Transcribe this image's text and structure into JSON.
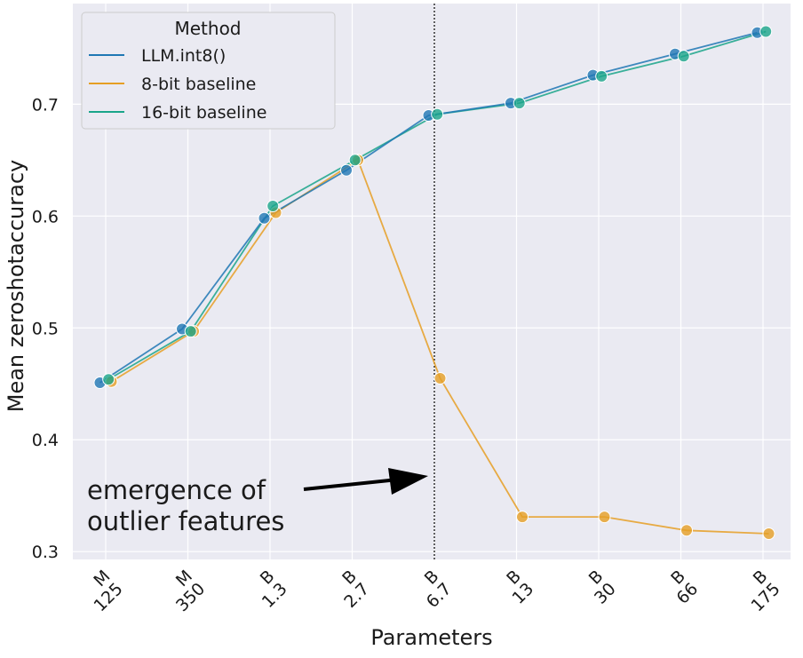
{
  "chart_data": {
    "type": "line",
    "categories": [
      "125\nM",
      "350\nM",
      "1.3\nB",
      "2.7\nB",
      "6.7\nB",
      "13\nB",
      "30\nB",
      "66\nB",
      "175\nB"
    ],
    "tick_labels": [
      {
        "value": "125",
        "unit": "M"
      },
      {
        "value": "350",
        "unit": "M"
      },
      {
        "value": "1.3",
        "unit": "B"
      },
      {
        "value": "2.7",
        "unit": "B"
      },
      {
        "value": "6.7",
        "unit": "B"
      },
      {
        "value": "13",
        "unit": "B"
      },
      {
        "value": "30",
        "unit": "B"
      },
      {
        "value": "66",
        "unit": "B"
      },
      {
        "value": "175",
        "unit": "B"
      }
    ],
    "series": [
      {
        "name": "LLM.int8()",
        "color": "#1f77b4",
        "values": [
          0.451,
          0.499,
          0.598,
          0.641,
          0.69,
          0.701,
          0.726,
          0.745,
          0.764
        ]
      },
      {
        "name": "8-bit baseline",
        "color": "#e69f24",
        "values": [
          0.452,
          0.497,
          0.603,
          0.65,
          0.455,
          0.331,
          0.331,
          0.319,
          0.316
        ]
      },
      {
        "name": "16-bit baseline",
        "color": "#1aa58a",
        "values": [
          0.454,
          0.497,
          0.609,
          0.65,
          0.691,
          0.701,
          0.725,
          0.743,
          0.765
        ]
      }
    ],
    "series_offsets": [
      -0.07,
      0.07,
      0.035
    ],
    "legend_title": "Method",
    "legend_position": "top-left",
    "xlabel": "Parameters",
    "ylabel": "Mean zeroshotaccuracy",
    "yticks": [
      "0.3",
      "0.4",
      "0.5",
      "0.6",
      "0.7"
    ],
    "ylim": [
      0.293,
      0.79
    ],
    "grid": true,
    "background": "#eaeaf2",
    "vline_category": "6.7\nB",
    "annotation": {
      "line1": "emergence of",
      "line2": "outlier features"
    }
  }
}
